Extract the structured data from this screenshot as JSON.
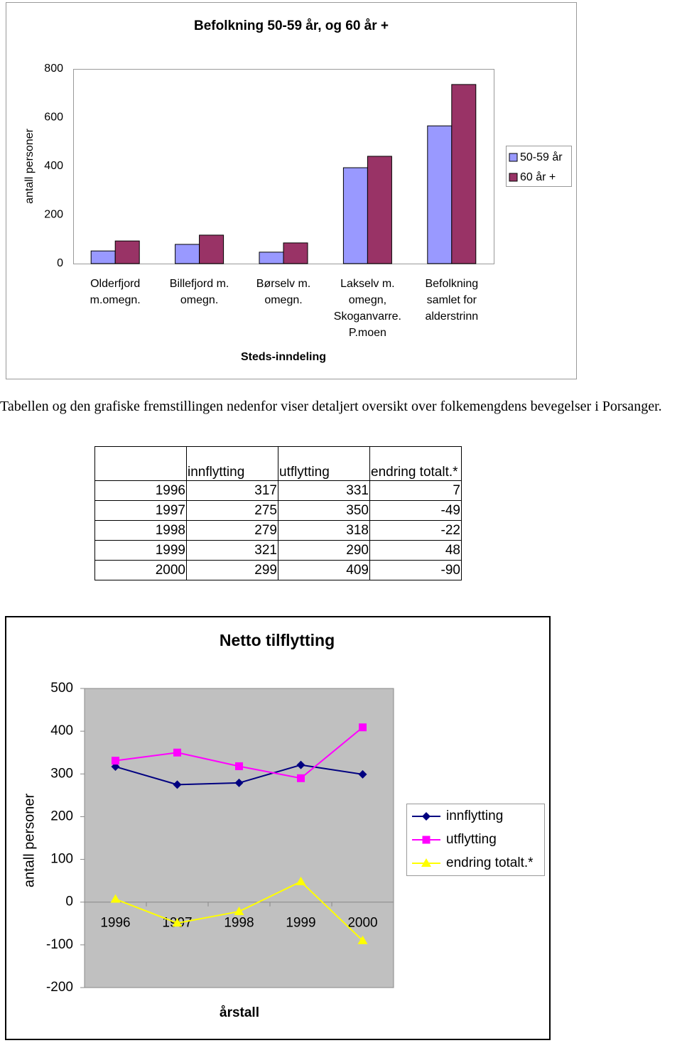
{
  "bar_chart": {
    "type": "bar",
    "title": "Befolkning 50-59 år, og 60 år +",
    "y_label": "antall personer",
    "x_label": "Steds-inndeling",
    "categories": [
      "Olderfjord m.omegn.",
      "Billefjord m. omegn.",
      "Børselv m. omegn.",
      "Lakselv m. omegn, Skoganvarre. P.moen",
      "Befolkning samlet for alderstrinn"
    ],
    "series": [
      {
        "name": "50-59 år",
        "color": "#9999ff",
        "values": [
          52,
          79,
          47,
          394,
          566
        ]
      },
      {
        "name": "60 år +",
        "color": "#993366",
        "values": [
          93,
          117,
          85,
          441,
          736
        ]
      }
    ],
    "ylim": [
      0,
      800
    ],
    "yticks": [
      0,
      200,
      400,
      600,
      800
    ],
    "grid": false,
    "legend": "right"
  },
  "text": "Tabellen og den grafiske fremstillingen nedenfor viser detaljert oversikt over folkemengdens bevegelser i Porsanger.",
  "table": {
    "header": [
      "innflytting",
      "utflytting",
      "endring totalt.*"
    ],
    "rows": [
      [
        1996,
        317,
        331,
        7
      ],
      [
        1997,
        275,
        350,
        -49
      ],
      [
        1998,
        279,
        318,
        -22
      ],
      [
        1999,
        321,
        290,
        48
      ],
      [
        2000,
        299,
        409,
        -90
      ]
    ]
  },
  "line_chart": {
    "type": "line",
    "title": "Netto tilflytting",
    "y_label": "antall personer",
    "x_label": "årstall",
    "categories": [
      "1996",
      "1997",
      "1998",
      "1999",
      "2000"
    ],
    "series": [
      {
        "name": "innflytting",
        "color": "#000080",
        "marker": "diamond",
        "values": [
          317,
          275,
          279,
          321,
          299
        ]
      },
      {
        "name": "utflytting",
        "color": "#ff00ff",
        "marker": "square",
        "values": [
          331,
          350,
          318,
          290,
          409
        ]
      },
      {
        "name": "endring totalt.*",
        "color": "#ffff00",
        "marker": "triangle",
        "values": [
          7,
          -49,
          -22,
          48,
          -90
        ]
      }
    ],
    "ylim": [
      -200,
      500
    ],
    "yticks": [
      -200,
      -100,
      0,
      100,
      200,
      300,
      400,
      500
    ],
    "grid": false,
    "plot_background": "#c0c0c0",
    "legend": "right"
  }
}
